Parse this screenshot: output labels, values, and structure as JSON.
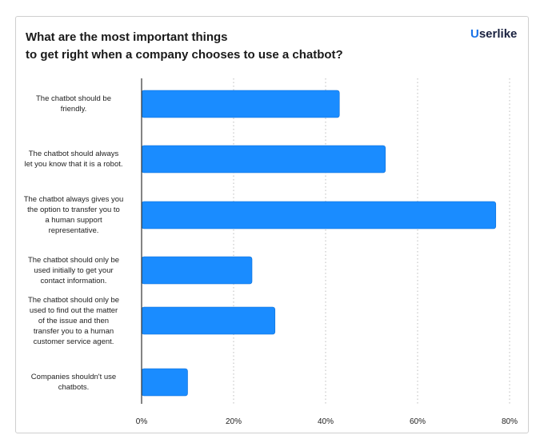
{
  "header": {
    "title_lines": [
      "What are the most important things",
      "to get right when a company chooses to use a chatbot?"
    ],
    "logo_text": "Userlike",
    "logo_mark": "U",
    "logo_rest": "serlike"
  },
  "colors": {
    "bar": "#1a8cff",
    "bar_stroke": "#0f6fd6",
    "grid": "#bdbdbd",
    "axis": "#333333",
    "logo_accent": "#1a73e8"
  },
  "chart_data": {
    "type": "bar",
    "orientation": "horizontal",
    "title": "What are the most important things to get right when a company chooses to use a chatbot?",
    "categories": [
      [
        "The chatbot should be",
        "friendly."
      ],
      [
        "The chatbot should always",
        "let you know that it is a robot."
      ],
      [
        "The chatbot always gives you",
        "the option to transfer you to",
        "a human support",
        "representative."
      ],
      [
        "The chatbot should only be",
        "used initially to get your",
        "contact information."
      ],
      [
        "The chatbot should only be",
        "used to find out the matter",
        "of the issue and then",
        "transfer you to a human",
        "customer service agent."
      ],
      [
        "Companies shouldn't use",
        "chatbots."
      ]
    ],
    "values": [
      43,
      53,
      77,
      24,
      29,
      10
    ],
    "xlim": [
      0,
      80
    ],
    "ticks": [
      0,
      20,
      40,
      60,
      80
    ],
    "tick_labels": [
      "0%",
      "20%",
      "40%",
      "60%",
      "80%"
    ],
    "grid": "vertical dotted",
    "xlabel": "",
    "ylabel": ""
  }
}
